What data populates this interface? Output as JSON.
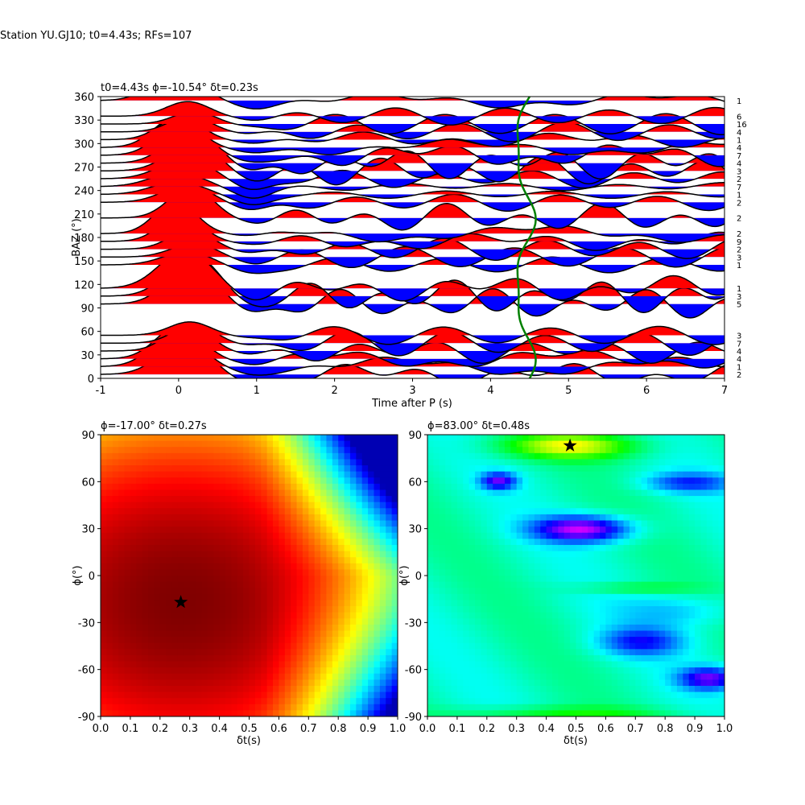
{
  "figure": {
    "suptitle": "Station YU.GJ10; t0=4.43s; RFs=107"
  },
  "chart_data": [
    {
      "type": "line",
      "panel": "rf-traces",
      "title": "t0=4.43s ϕ=-10.54° δt=0.23s",
      "xlabel": "Time after P (s)",
      "ylabel": "BAZ (°)",
      "xlim": [
        -1,
        7
      ],
      "ylim": [
        0,
        360
      ],
      "xticks": [
        "-1",
        "0",
        "1",
        "2",
        "3",
        "4",
        "5",
        "6",
        "7"
      ],
      "yticks": [
        "0",
        "30",
        "60",
        "90",
        "120",
        "150",
        "180",
        "210",
        "240",
        "270",
        "300",
        "330",
        "360"
      ],
      "fill_positive_color": "#ff0000",
      "fill_negative_color": "#0000ff",
      "delay_curve_color": "#008000",
      "traces": [
        {
          "baz": 5,
          "count": "2"
        },
        {
          "baz": 15,
          "count": "1"
        },
        {
          "baz": 25,
          "count": "4"
        },
        {
          "baz": 35,
          "count": "4"
        },
        {
          "baz": 45,
          "count": "7"
        },
        {
          "baz": 55,
          "count": "3"
        },
        {
          "baz": 95,
          "count": "5"
        },
        {
          "baz": 105,
          "count": "3"
        },
        {
          "baz": 115,
          "count": "1"
        },
        {
          "baz": 145,
          "count": "1"
        },
        {
          "baz": 155,
          "count": "3"
        },
        {
          "baz": 165,
          "count": "2"
        },
        {
          "baz": 175,
          "count": "9"
        },
        {
          "baz": 185,
          "count": "2"
        },
        {
          "baz": 205,
          "count": "2"
        },
        {
          "baz": 225,
          "count": "2"
        },
        {
          "baz": 235,
          "count": "1"
        },
        {
          "baz": 245,
          "count": "7"
        },
        {
          "baz": 255,
          "count": "2"
        },
        {
          "baz": 265,
          "count": "3"
        },
        {
          "baz": 275,
          "count": "4"
        },
        {
          "baz": 285,
          "count": "7"
        },
        {
          "baz": 295,
          "count": "4"
        },
        {
          "baz": 305,
          "count": "1"
        },
        {
          "baz": 315,
          "count": "4"
        },
        {
          "baz": 325,
          "count": "16"
        },
        {
          "baz": 335,
          "count": "6"
        },
        {
          "baz": 355,
          "count": "1"
        }
      ]
    },
    {
      "type": "heatmap",
      "panel": "left-grid",
      "title": "ϕ=-17.00° δt=0.27s",
      "xlabel": "δt(s)",
      "ylabel": "ϕ(°)",
      "xlim": [
        0,
        1
      ],
      "ylim": [
        -90,
        90
      ],
      "xticks": [
        "0.0",
        "0.1",
        "0.2",
        "0.3",
        "0.4",
        "0.5",
        "0.6",
        "0.7",
        "0.8",
        "0.9",
        "1.0"
      ],
      "yticks": [
        "-90",
        "-60",
        "-30",
        "0",
        "30",
        "60",
        "90"
      ],
      "colormap": "jet",
      "best": {
        "dt": 0.27,
        "phi": -17
      }
    },
    {
      "type": "heatmap",
      "panel": "right-grid",
      "title": "ϕ=83.00° δt=0.48s",
      "xlabel": "δt(s)",
      "ylabel": "ϕ(°)",
      "xlim": [
        0,
        1
      ],
      "ylim": [
        -90,
        90
      ],
      "xticks": [
        "0.0",
        "0.1",
        "0.2",
        "0.3",
        "0.4",
        "0.5",
        "0.6",
        "0.7",
        "0.8",
        "0.9",
        "1.0"
      ],
      "yticks": [
        "-90",
        "-60",
        "-30",
        "0",
        "30",
        "60",
        "90"
      ],
      "colormap": "gist_rainbow",
      "best": {
        "dt": 0.48,
        "phi": 83
      }
    }
  ]
}
